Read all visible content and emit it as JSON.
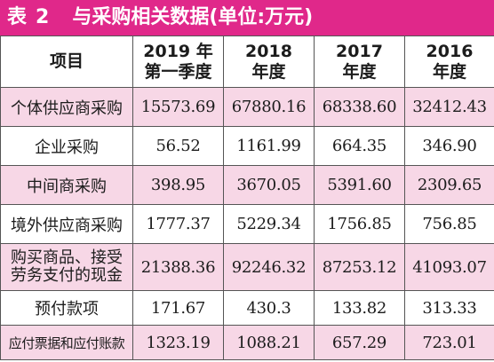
{
  "title": {
    "label": "表",
    "number": "2",
    "text": "与采购相关数据(单位:万元)"
  },
  "colors": {
    "title_bar": "#e0288a",
    "row_shade": "#f7d7e6"
  },
  "columns": [
    "项目",
    {
      "line1": "2019 年",
      "line2": "第一季度"
    },
    {
      "line1": "2018",
      "line2": "年度"
    },
    {
      "line1": "2017",
      "line2": "年度"
    },
    {
      "line1": "2016",
      "line2": "年度"
    }
  ],
  "rows": [
    {
      "name": "个体供应商采购",
      "values": [
        "15573.69",
        "67880.16",
        "68338.60",
        "32412.43"
      ]
    },
    {
      "name": "企业采购",
      "values": [
        "56.52",
        "1161.99",
        "664.35",
        "346.90"
      ]
    },
    {
      "name": "中间商采购",
      "values": [
        "398.95",
        "3670.05",
        "5391.60",
        "2309.65"
      ]
    },
    {
      "name": "境外供应商采购",
      "values": [
        "1777.37",
        "5229.34",
        "1756.85",
        "756.85"
      ]
    },
    {
      "name_line1": "购买商品、接受",
      "name_line2": "劳务支付的现金",
      "values": [
        "21388.36",
        "92246.32",
        "87253.12",
        "41093.07"
      ]
    },
    {
      "name": "预付款项",
      "values": [
        "171.67",
        "430.3",
        "133.82",
        "313.33"
      ]
    },
    {
      "name": "应付票据和应付账款",
      "values": [
        "1323.19",
        "1088.21",
        "657.29",
        "723.01"
      ]
    }
  ]
}
